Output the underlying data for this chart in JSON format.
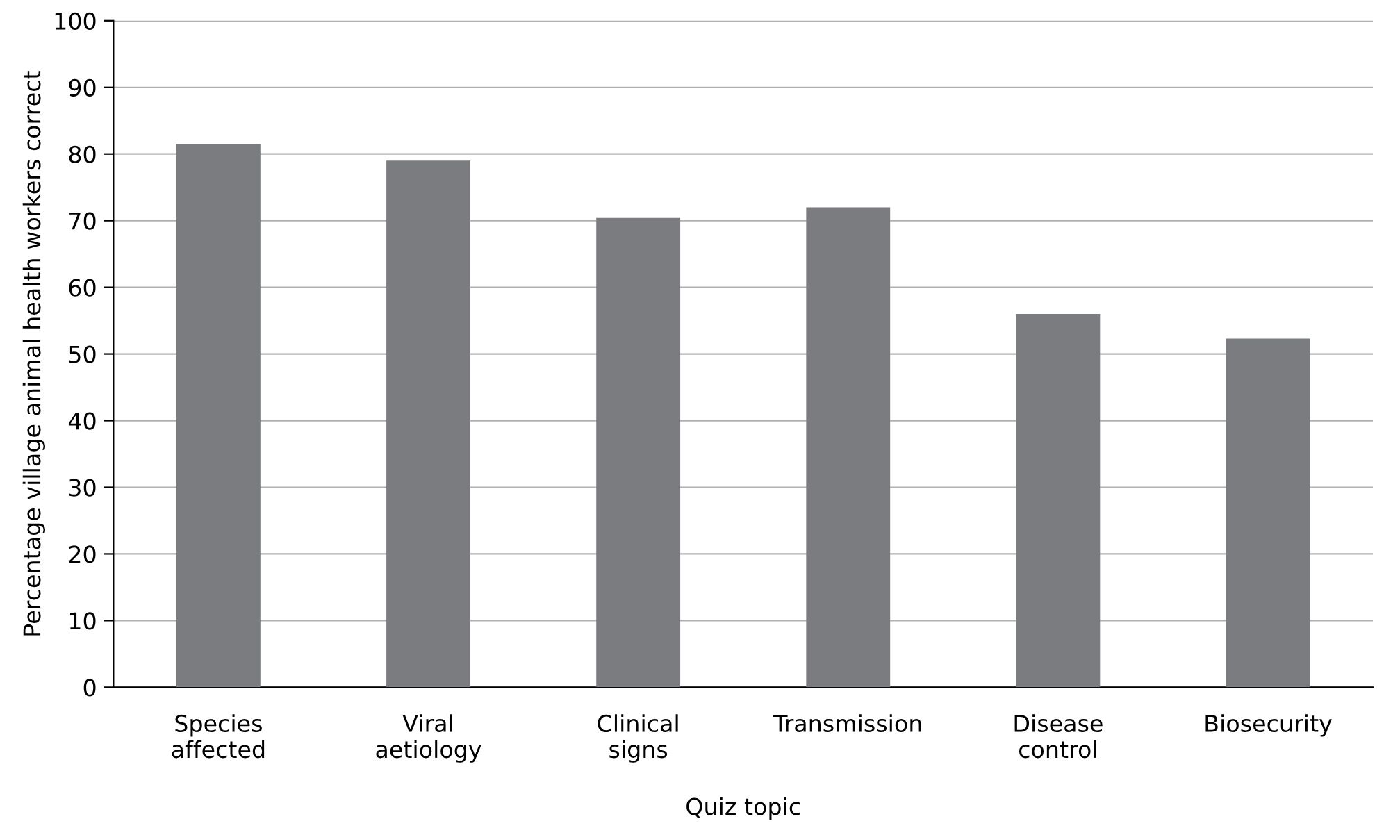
{
  "chart_data": {
    "type": "bar",
    "xlabel": "Quiz topic",
    "ylabel": "Percentage village animal health workers correct",
    "categories": [
      "Species\naffected",
      "Viral\naetiology",
      "Clinical\nsigns",
      "Transmission",
      "Disease\ncontrol",
      "Biosecurity"
    ],
    "values": [
      81.5,
      79,
      70.4,
      72,
      56,
      52.3
    ],
    "color": "#7b7c80",
    "ylim": [
      0,
      100
    ],
    "yticks": [
      0,
      10,
      20,
      30,
      40,
      50,
      60,
      70,
      80,
      90,
      100
    ],
    "grid": "y",
    "legend": false
  }
}
